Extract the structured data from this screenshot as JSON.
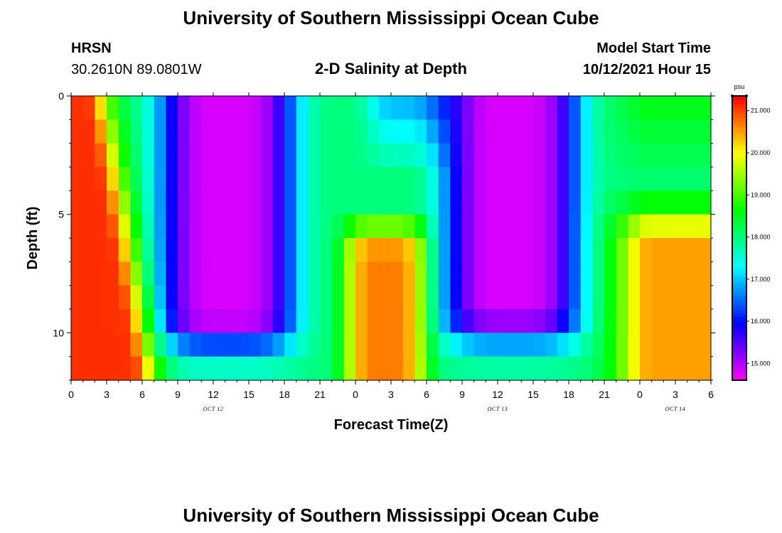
{
  "page": {
    "title_top": "University of Southern Mississippi Ocean Cube",
    "title_bottom": "University of Southern Mississippi Ocean Cube",
    "station": "HRSN",
    "coords": "30.2610N  89.0801W",
    "subtitle": "2-D Salinity at Depth",
    "model_label": "Model Start Time",
    "model_time": "10/12/2021 Hour 15"
  },
  "chart_data": {
    "type": "heatmap",
    "title": "2-D Salinity at Depth",
    "xlabel": "Forecast Time(Z)",
    "ylabel": "Depth (ft)",
    "x_range_hours": [
      0,
      54
    ],
    "y_range_ft": [
      0,
      12
    ],
    "x_ticks": [
      {
        "h": 0,
        "label": "0"
      },
      {
        "h": 3,
        "label": "3"
      },
      {
        "h": 6,
        "label": "6"
      },
      {
        "h": 9,
        "label": "9"
      },
      {
        "h": 12,
        "label": "12"
      },
      {
        "h": 15,
        "label": "15"
      },
      {
        "h": 18,
        "label": "18"
      },
      {
        "h": 21,
        "label": "21"
      },
      {
        "h": 24,
        "label": "0"
      },
      {
        "h": 27,
        "label": "3"
      },
      {
        "h": 30,
        "label": "6"
      },
      {
        "h": 33,
        "label": "9"
      },
      {
        "h": 36,
        "label": "12"
      },
      {
        "h": 39,
        "label": "15"
      },
      {
        "h": 42,
        "label": "18"
      },
      {
        "h": 45,
        "label": "21"
      },
      {
        "h": 48,
        "label": "0"
      },
      {
        "h": 51,
        "label": "3"
      },
      {
        "h": 54,
        "label": "6"
      }
    ],
    "day_labels": [
      {
        "h": 12,
        "label": "OCT 12"
      },
      {
        "h": 36,
        "label": "OCT 13"
      },
      {
        "h": 51,
        "label": "OCT 14"
      }
    ],
    "y_ticks": [
      {
        "v": 0,
        "label": "0"
      },
      {
        "v": 5,
        "label": "5"
      },
      {
        "v": 10,
        "label": "10"
      }
    ],
    "colorbar": {
      "unit": "psu",
      "min": 14.6,
      "max": 21.35,
      "ticks": [
        {
          "v": 15,
          "label": "15.000"
        },
        {
          "v": 16,
          "label": "16.000"
        },
        {
          "v": 17,
          "label": "17.000"
        },
        {
          "v": 18,
          "label": "18.000"
        },
        {
          "v": 19,
          "label": "19.000"
        },
        {
          "v": 20,
          "label": "20.000"
        },
        {
          "v": 21,
          "label": "21.000"
        }
      ]
    },
    "time_step_hours": 1,
    "depth_layers_ft": [
      0.5,
      1.5,
      2.5,
      3.5,
      4.5,
      5.5,
      6.5,
      7.5,
      8.5,
      9.5,
      10.5,
      11.5
    ],
    "salinity_profile": {
      "description": "Fresh water lens (<=15 psu) near surface during ~8-19h and ~33-42h; salty (~21 psu) at 0-3h, orange (~20.5 psu) at bottom ~24-29h and 48-54h",
      "salinity_min_psu": 14.8,
      "salinity_max_psu": 21.2
    }
  }
}
